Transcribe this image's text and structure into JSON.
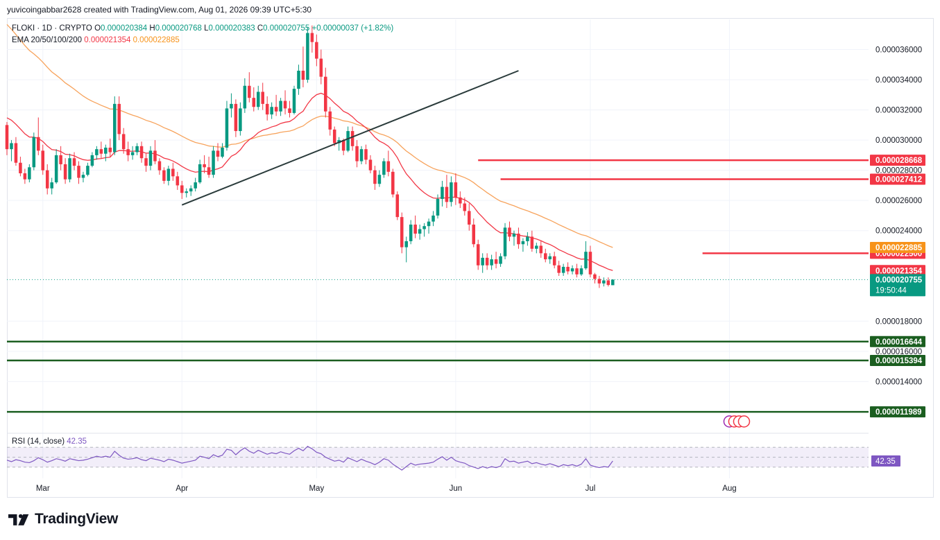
{
  "header": {
    "caption": "yuvicoingabbar2628 created with TradingView.com, Aug 01, 2026 09:39 UTC+5:30"
  },
  "legend": {
    "symbol": "FLOKI · 1D · CRYPTO",
    "open_label": "O",
    "open": "0.000020384",
    "high_label": "H",
    "high": "0.000020768",
    "low_label": "L",
    "low": "0.000020383",
    "close_label": "C",
    "close": "0.000020755",
    "change": "+0.00000037",
    "change_pct": "(+1.82%)",
    "ema_label": "EMA 20/50/100/200",
    "ema_value_1": "0.000021354",
    "ema_value_2": "0.000022885"
  },
  "rsi": {
    "label": "RSI (14, close)",
    "value": "42.35"
  },
  "brand": {
    "name": "TradingView"
  },
  "colors": {
    "up": "#089981",
    "down": "#f23645",
    "ema_fast": "#f23645",
    "ema_slow": "#f7a35c",
    "resistance": "#f23645",
    "support": "#1b5e20",
    "trendline": "#2a3b3b",
    "rsi": "#7e57c2"
  },
  "chart_data": {
    "type": "candlestick",
    "symbol": "FLOKI",
    "interval": "1D",
    "x_ticks": [
      {
        "label": "Mar",
        "date": "2026-03-01"
      },
      {
        "label": "Apr",
        "date": "2026-04-01"
      },
      {
        "label": "May",
        "date": "2026-05-01"
      },
      {
        "label": "Jun",
        "date": "2026-06-01"
      },
      {
        "label": "Jul",
        "date": "2026-07-01"
      },
      {
        "label": "Aug",
        "date": "2026-08-01"
      }
    ],
    "y_ticks": [
      "0.000036000",
      "0.000034000",
      "0.000032000",
      "0.000030000",
      "0.000028000",
      "0.000026000",
      "0.000024000",
      "0.000018000",
      "0.000016000",
      "0.000014000"
    ],
    "ylim": [
      1.08e-05,
      3.8e-05
    ],
    "x_range": [
      "2026-02-21",
      "2026-09-01"
    ],
    "ohlc_start_date": "2026-02-21",
    "ohlc": [
      [
        3.1e-05,
        3.12e-05,
        2.9e-05,
        2.94e-05
      ],
      [
        2.94e-05,
        3e-05,
        2.86e-05,
        2.98e-05
      ],
      [
        2.98e-05,
        3.02e-05,
        2.83e-05,
        2.85e-05
      ],
      [
        2.85e-05,
        2.89e-05,
        2.76e-05,
        2.78e-05
      ],
      [
        2.78e-05,
        2.81e-05,
        2.71e-05,
        2.74e-05
      ],
      [
        2.74e-05,
        2.84e-05,
        2.72e-05,
        2.82e-05
      ],
      [
        2.82e-05,
        3.05e-05,
        2.8e-05,
        3.02e-05
      ],
      [
        3.02e-05,
        3.15e-05,
        2.9e-05,
        2.93e-05
      ],
      [
        2.93e-05,
        2.97e-05,
        2.77e-05,
        2.8e-05
      ],
      [
        2.8e-05,
        2.84e-05,
        2.64e-05,
        2.68e-05
      ],
      [
        2.68e-05,
        2.75e-05,
        2.64e-05,
        2.72e-05
      ],
      [
        2.72e-05,
        2.94e-05,
        2.71e-05,
        2.9e-05
      ],
      [
        2.9e-05,
        2.96e-05,
        2.8e-05,
        2.84e-05
      ],
      [
        2.84e-05,
        2.88e-05,
        2.71e-05,
        2.74e-05
      ],
      [
        2.74e-05,
        2.91e-05,
        2.72e-05,
        2.88e-05
      ],
      [
        2.88e-05,
        2.92e-05,
        2.8e-05,
        2.83e-05
      ],
      [
        2.83e-05,
        2.86e-05,
        2.71e-05,
        2.75e-05
      ],
      [
        2.75e-05,
        2.79e-05,
        2.72e-05,
        2.77e-05
      ],
      [
        2.77e-05,
        2.85e-05,
        2.76e-05,
        2.83e-05
      ],
      [
        2.83e-05,
        2.92e-05,
        2.82e-05,
        2.9e-05
      ],
      [
        2.9e-05,
        2.96e-05,
        2.87e-05,
        2.94e-05
      ],
      [
        2.94e-05,
        2.99e-05,
        2.88e-05,
        2.91e-05
      ],
      [
        2.91e-05,
        2.97e-05,
        2.86e-05,
        2.95e-05
      ],
      [
        2.95e-05,
        3.01e-05,
        2.89e-05,
        2.92e-05
      ],
      [
        2.92e-05,
        3.29e-05,
        2.9e-05,
        3.24e-05
      ],
      [
        3.24e-05,
        3.29e-05,
        3e-05,
        3.04e-05
      ],
      [
        3.04e-05,
        3.08e-05,
        2.91e-05,
        2.94e-05
      ],
      [
        2.94e-05,
        2.99e-05,
        2.86e-05,
        2.9e-05
      ],
      [
        2.9e-05,
        2.96e-05,
        2.87e-05,
        2.92e-05
      ],
      [
        2.92e-05,
        2.98e-05,
        2.9e-05,
        2.96e-05
      ],
      [
        2.96e-05,
        2.99e-05,
        2.85e-05,
        2.88e-05
      ],
      [
        2.88e-05,
        2.91e-05,
        2.79e-05,
        2.83e-05
      ],
      [
        2.83e-05,
        2.96e-05,
        2.8e-05,
        2.93e-05
      ],
      [
        2.93e-05,
        3e-05,
        2.84e-05,
        2.86e-05
      ],
      [
        2.86e-05,
        2.88e-05,
        2.77e-05,
        2.8e-05
      ],
      [
        2.8e-05,
        2.82e-05,
        2.71e-05,
        2.73e-05
      ],
      [
        2.73e-05,
        2.83e-05,
        2.7e-05,
        2.81e-05
      ],
      [
        2.81e-05,
        2.85e-05,
        2.73e-05,
        2.76e-05
      ],
      [
        2.76e-05,
        2.79e-05,
        2.67e-05,
        2.7e-05
      ],
      [
        2.7e-05,
        2.73e-05,
        2.61e-05,
        2.65e-05
      ],
      [
        2.65e-05,
        2.68e-05,
        2.62e-05,
        2.66e-05
      ],
      [
        2.66e-05,
        2.7e-05,
        2.63e-05,
        2.68e-05
      ],
      [
        2.68e-05,
        2.75e-05,
        2.66e-05,
        2.72e-05
      ],
      [
        2.72e-05,
        2.87e-05,
        2.71e-05,
        2.84e-05
      ],
      [
        2.84e-05,
        2.9e-05,
        2.78e-05,
        2.82e-05
      ],
      [
        2.82e-05,
        2.89e-05,
        2.75e-05,
        2.77e-05
      ],
      [
        2.77e-05,
        2.96e-05,
        2.75e-05,
        2.93e-05
      ],
      [
        2.93e-05,
        2.98e-05,
        2.86e-05,
        2.89e-05
      ],
      [
        2.89e-05,
        2.98e-05,
        2.88e-05,
        2.95e-05
      ],
      [
        2.95e-05,
        3.26e-05,
        2.93e-05,
        3.21e-05
      ],
      [
        3.21e-05,
        3.31e-05,
        3.15e-05,
        3.24e-05
      ],
      [
        3.24e-05,
        3.27e-05,
        3.02e-05,
        3.06e-05
      ],
      [
        3.06e-05,
        3.25e-05,
        3.03e-05,
        3.21e-05
      ],
      [
        3.21e-05,
        3.41e-05,
        3.18e-05,
        3.36e-05
      ],
      [
        3.36e-05,
        3.45e-05,
        3.25e-05,
        3.28e-05
      ],
      [
        3.28e-05,
        3.35e-05,
        3.19e-05,
        3.22e-05
      ],
      [
        3.22e-05,
        3.36e-05,
        3.2e-05,
        3.32e-05
      ],
      [
        3.32e-05,
        3.38e-05,
        3.2e-05,
        3.24e-05
      ],
      [
        3.24e-05,
        3.29e-05,
        3.13e-05,
        3.17e-05
      ],
      [
        3.17e-05,
        3.25e-05,
        3.14e-05,
        3.22e-05
      ],
      [
        3.22e-05,
        3.3e-05,
        3.16e-05,
        3.19e-05
      ],
      [
        3.19e-05,
        3.28e-05,
        3.16e-05,
        3.26e-05
      ],
      [
        3.26e-05,
        3.33e-05,
        3.17e-05,
        3.21e-05
      ],
      [
        3.21e-05,
        3.26e-05,
        3.15e-05,
        3.18e-05
      ],
      [
        3.18e-05,
        3.36e-05,
        3.17e-05,
        3.34e-05
      ],
      [
        3.34e-05,
        3.5e-05,
        3.3e-05,
        3.46e-05
      ],
      [
        3.46e-05,
        3.62e-05,
        3.35e-05,
        3.4e-05
      ],
      [
        3.4e-05,
        3.75e-05,
        3.38e-05,
        3.71e-05
      ],
      [
        3.71e-05,
        3.76e-05,
        3.58e-05,
        3.65e-05
      ],
      [
        3.65e-05,
        3.7e-05,
        3.49e-05,
        3.54e-05
      ],
      [
        3.54e-05,
        3.6e-05,
        3.37e-05,
        3.42e-05
      ],
      [
        3.42e-05,
        3.48e-05,
        3.15e-05,
        3.19e-05
      ],
      [
        3.19e-05,
        3.22e-05,
        3.03e-05,
        3.07e-05
      ],
      [
        3.07e-05,
        3.09e-05,
        2.96e-05,
        2.98e-05
      ],
      [
        2.98e-05,
        3.02e-05,
        2.93e-05,
        3e-05
      ],
      [
        3e-05,
        3.01e-05,
        2.9e-05,
        2.93e-05
      ],
      [
        2.93e-05,
        3.09e-05,
        2.92e-05,
        3.06e-05
      ],
      [
        3.06e-05,
        3.09e-05,
        2.93e-05,
        2.96e-05
      ],
      [
        2.96e-05,
        3e-05,
        2.82e-05,
        2.86e-05
      ],
      [
        2.86e-05,
        2.96e-05,
        2.84e-05,
        2.94e-05
      ],
      [
        2.94e-05,
        2.97e-05,
        2.84e-05,
        2.87e-05
      ],
      [
        2.87e-05,
        2.9e-05,
        2.78e-05,
        2.8e-05
      ],
      [
        2.8e-05,
        2.83e-05,
        2.67e-05,
        2.71e-05
      ],
      [
        2.71e-05,
        2.8e-05,
        2.69e-05,
        2.77e-05
      ],
      [
        2.77e-05,
        2.88e-05,
        2.75e-05,
        2.86e-05
      ],
      [
        2.86e-05,
        2.93e-05,
        2.76e-05,
        2.79e-05
      ],
      [
        2.79e-05,
        2.81e-05,
        2.62e-05,
        2.64e-05
      ],
      [
        2.64e-05,
        2.66e-05,
        2.47e-05,
        2.49e-05
      ],
      [
        2.49e-05,
        2.52e-05,
        2.25e-05,
        2.29e-05
      ],
      [
        2.29e-05,
        2.36e-05,
        2.19e-05,
        2.33e-05
      ],
      [
        2.33e-05,
        2.47e-05,
        2.31e-05,
        2.44e-05
      ],
      [
        2.44e-05,
        2.5e-05,
        2.35e-05,
        2.38e-05
      ],
      [
        2.38e-05,
        2.44e-05,
        2.34e-05,
        2.41e-05
      ],
      [
        2.41e-05,
        2.45e-05,
        2.36e-05,
        2.43e-05
      ],
      [
        2.43e-05,
        2.48e-05,
        2.38e-05,
        2.46e-05
      ],
      [
        2.46e-05,
        2.53e-05,
        2.43e-05,
        2.5e-05
      ],
      [
        2.5e-05,
        2.64e-05,
        2.48e-05,
        2.61e-05
      ],
      [
        2.61e-05,
        2.73e-05,
        2.56e-05,
        2.69e-05
      ],
      [
        2.69e-05,
        2.77e-05,
        2.55e-05,
        2.59e-05
      ],
      [
        2.59e-05,
        2.76e-05,
        2.56e-05,
        2.72e-05
      ],
      [
        2.72e-05,
        2.78e-05,
        2.57e-05,
        2.62e-05
      ],
      [
        2.62e-05,
        2.66e-05,
        2.55e-05,
        2.58e-05
      ],
      [
        2.58e-05,
        2.62e-05,
        2.5e-05,
        2.53e-05
      ],
      [
        2.53e-05,
        2.58e-05,
        2.4e-05,
        2.44e-05
      ],
      [
        2.44e-05,
        2.48e-05,
        2.29e-05,
        2.31e-05
      ],
      [
        2.31e-05,
        2.34e-05,
        2.14e-05,
        2.17e-05
      ],
      [
        2.17e-05,
        2.25e-05,
        2.12e-05,
        2.22e-05
      ],
      [
        2.22e-05,
        2.25e-05,
        2.14e-05,
        2.17e-05
      ],
      [
        2.17e-05,
        2.24e-05,
        2.14e-05,
        2.21e-05
      ],
      [
        2.21e-05,
        2.26e-05,
        2.15e-05,
        2.18e-05
      ],
      [
        2.18e-05,
        2.25e-05,
        2.16e-05,
        2.23e-05
      ],
      [
        2.23e-05,
        2.45e-05,
        2.21e-05,
        2.42e-05
      ],
      [
        2.42e-05,
        2.46e-05,
        2.33e-05,
        2.36e-05
      ],
      [
        2.36e-05,
        2.4e-05,
        2.3e-05,
        2.38e-05
      ],
      [
        2.38e-05,
        2.42e-05,
        2.28e-05,
        2.31e-05
      ],
      [
        2.31e-05,
        2.35e-05,
        2.26e-05,
        2.33e-05
      ],
      [
        2.33e-05,
        2.39e-05,
        2.3e-05,
        2.36e-05
      ],
      [
        2.36e-05,
        2.4e-05,
        2.26e-05,
        2.28e-05
      ],
      [
        2.28e-05,
        2.32e-05,
        2.25e-05,
        2.3e-05
      ],
      [
        2.3e-05,
        2.33e-05,
        2.22e-05,
        2.25e-05
      ],
      [
        2.25e-05,
        2.28e-05,
        2.19e-05,
        2.21e-05
      ],
      [
        2.21e-05,
        2.25e-05,
        2.18e-05,
        2.23e-05
      ],
      [
        2.23e-05,
        2.26e-05,
        2.15e-05,
        2.17e-05
      ],
      [
        2.17e-05,
        2.2e-05,
        2.1e-05,
        2.12e-05
      ],
      [
        2.12e-05,
        2.18e-05,
        2.1e-05,
        2.16e-05
      ],
      [
        2.16e-05,
        2.19e-05,
        2.11e-05,
        2.13e-05
      ],
      [
        2.13e-05,
        2.17e-05,
        2.11e-05,
        2.15e-05
      ],
      [
        2.15e-05,
        2.18e-05,
        2.09e-05,
        2.11e-05
      ],
      [
        2.11e-05,
        2.17e-05,
        2.1e-05,
        2.15e-05
      ],
      [
        2.15e-05,
        2.33e-05,
        2.14e-05,
        2.26e-05
      ],
      [
        2.26e-05,
        2.3e-05,
        2.09e-05,
        2.11e-05
      ],
      [
        2.11e-05,
        2.12e-05,
        2.05e-05,
        2.08e-05
      ],
      [
        2.08e-05,
        2.1e-05,
        2.02e-05,
        2.05e-05
      ],
      [
        2.05e-05,
        2.09e-05,
        2.03e-05,
        2.07e-05
      ],
      [
        2.07e-05,
        2.09e-05,
        2.03e-05,
        2.04e-05
      ],
      [
        2.0384e-05,
        2.0768e-05,
        2.0383e-05,
        2.0755e-05
      ]
    ],
    "ema_fast_label": "0.000021354",
    "ema_slow_label": "0.000022885",
    "ema_fast_start": 3.17e-05,
    "ema_slow_start": 3.8e-05,
    "ema_fast_end": 2.1354e-05,
    "ema_slow_end": 2.2885e-05,
    "trendline": {
      "from": {
        "date": "2026-04-01",
        "price": 2.57e-05
      },
      "to": {
        "date": "2026-06-15",
        "price": 3.46e-05
      }
    },
    "resistance_lines": [
      {
        "price": 2.8668e-05,
        "label": "0.000028668",
        "from": "2026-06-06"
      },
      {
        "price": 2.7412e-05,
        "label": "0.000027412",
        "from": "2026-06-11"
      },
      {
        "price": 2.25e-05,
        "label": "0.000022500",
        "from": "2026-07-26"
      }
    ],
    "support_lines": [
      {
        "price": 1.6644e-05,
        "label": "0.000016644"
      },
      {
        "price": 1.5394e-05,
        "label": "0.000015394"
      },
      {
        "price": 1.1989e-05,
        "label": "0.000011989"
      }
    ],
    "price_tags": [
      {
        "price": 2.2885e-05,
        "label": "0.000022885",
        "color": "#f7931a"
      },
      {
        "price": 2.1354e-05,
        "label": "0.000021354",
        "color": "#f23645"
      }
    ],
    "last_price": {
      "price": 2.0755e-05,
      "label": "0.000020755",
      "countdown": "19:50:44"
    },
    "rsi": {
      "ylim": [
        20,
        90
      ],
      "bands": [
        70,
        50,
        30
      ],
      "values": [
        44,
        41,
        45,
        43,
        40,
        39,
        43,
        49,
        45,
        40,
        43,
        47,
        45,
        42,
        47,
        45,
        43,
        44,
        46,
        49,
        52,
        50,
        52,
        50,
        62,
        54,
        48,
        46,
        47,
        49,
        45,
        43,
        48,
        46,
        44,
        41,
        46,
        44,
        41,
        38,
        40,
        42,
        44,
        52,
        50,
        47,
        55,
        51,
        54,
        66,
        64,
        55,
        63,
        69,
        62,
        58,
        64,
        60,
        56,
        59,
        57,
        61,
        58,
        56,
        63,
        68,
        63,
        72,
        67,
        60,
        57,
        50,
        46,
        42,
        44,
        40,
        49,
        45,
        41,
        46,
        42,
        39,
        35,
        40,
        47,
        44,
        36,
        30,
        24,
        31,
        38,
        34,
        36,
        37,
        38,
        40,
        46,
        51,
        44,
        50,
        43,
        40,
        38,
        33,
        30,
        27,
        31,
        28,
        31,
        29,
        32,
        47,
        41,
        42,
        38,
        40,
        42,
        37,
        39,
        36,
        34,
        37,
        34,
        31,
        35,
        33,
        35,
        32,
        36,
        47,
        34,
        31,
        29,
        31,
        30,
        42.35
      ]
    }
  }
}
